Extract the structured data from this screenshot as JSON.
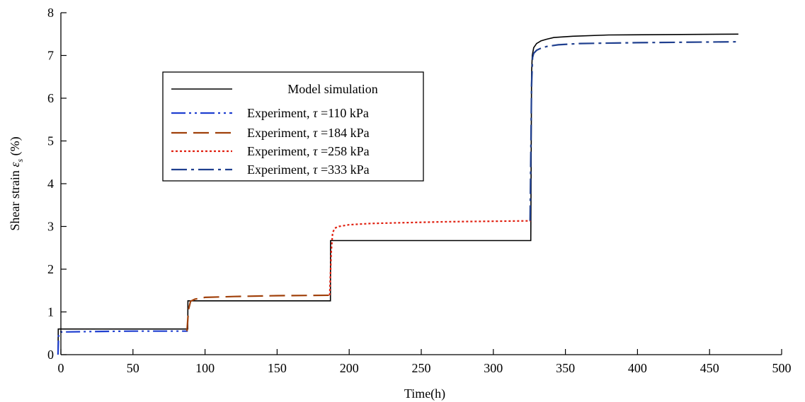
{
  "chart_data": {
    "type": "line",
    "xlabel": "Time(h)",
    "ylabel_prefix": "Shear strain",
    "ylabel_symbol": "ε",
    "ylabel_subscript": "s",
    "ylabel_unit": "(%)",
    "xlim": [
      0,
      500
    ],
    "ylim": [
      0,
      8
    ],
    "xticks": [
      0,
      50,
      100,
      150,
      200,
      250,
      300,
      350,
      400,
      450,
      500
    ],
    "yticks": [
      0,
      1,
      2,
      3,
      4,
      5,
      6,
      7,
      8
    ],
    "grid": false,
    "legend_position": "upper-left",
    "series": [
      {
        "name": "Model simulation",
        "color": "#000000",
        "dash": "solid",
        "x": [
          -2,
          -1.8,
          88,
          88.1,
          187,
          187.1,
          326,
          326.5,
          327,
          328,
          330,
          333,
          337,
          342,
          355,
          380,
          470
        ],
        "y": [
          0,
          0.6,
          0.6,
          1.26,
          1.26,
          2.67,
          2.67,
          6.6,
          7.0,
          7.18,
          7.28,
          7.34,
          7.38,
          7.42,
          7.45,
          7.48,
          7.5
        ]
      },
      {
        "name": "Experiment, τ =110 kPa",
        "label_prefix": "Experiment, ",
        "label_symbol": "τ",
        "label_suffix": " =110 kPa",
        "color": "#1f3fd0",
        "dash": "dash-dot-dot",
        "x": [
          -2,
          -1.5,
          0,
          20,
          50,
          88
        ],
        "y": [
          0,
          0.5,
          0.53,
          0.54,
          0.55,
          0.55
        ]
      },
      {
        "name": "Experiment, τ =184 kPa",
        "label_prefix": "Experiment, ",
        "label_symbol": "τ",
        "label_suffix": " =184 kPa",
        "color": "#a0400a",
        "dash": "long-dash",
        "x": [
          87.5,
          88.5,
          90,
          93,
          100,
          120,
          150,
          187
        ],
        "y": [
          0.55,
          1.05,
          1.25,
          1.3,
          1.34,
          1.36,
          1.38,
          1.39
        ]
      },
      {
        "name": "Experiment, τ =258 kPa",
        "label_prefix": "Experiment, ",
        "label_symbol": "τ",
        "label_suffix": " =258 kPa",
        "color": "#e02010",
        "dash": "dotted",
        "x": [
          186.5,
          187.5,
          188.5,
          190,
          193,
          200,
          215,
          240,
          270,
          326
        ],
        "y": [
          1.39,
          2.4,
          2.85,
          2.96,
          3.0,
          3.04,
          3.07,
          3.09,
          3.11,
          3.13
        ]
      },
      {
        "name": "Experiment, τ =333 kPa",
        "label_prefix": "Experiment, ",
        "label_symbol": "τ",
        "label_suffix": " =333 kPa",
        "color": "#1f3f8f",
        "dash": "dash-dot",
        "x": [
          325.5,
          326.5,
          327.2,
          328,
          330,
          333,
          337,
          345,
          360,
          400,
          470
        ],
        "y": [
          3.13,
          6.3,
          6.95,
          7.05,
          7.12,
          7.17,
          7.21,
          7.25,
          7.28,
          7.3,
          7.32
        ]
      }
    ]
  }
}
